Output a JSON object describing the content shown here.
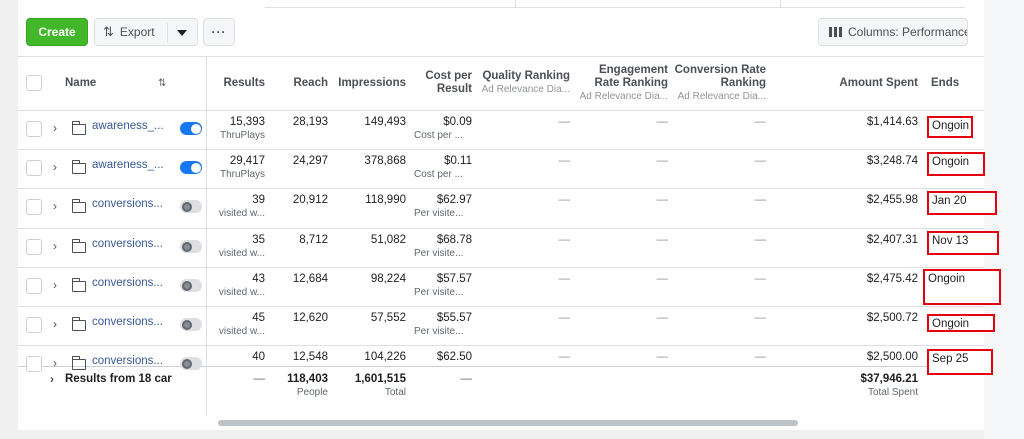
{
  "toolbar": {
    "create_label": "Create",
    "export_label": "Export",
    "more_label": "···",
    "columns_label": "Columns: Performance"
  },
  "headers": {
    "name": "Name",
    "results": "Results",
    "reach": "Reach",
    "impressions": "Impressions",
    "cost_per_result": [
      "Cost per",
      "Result"
    ],
    "quality_ranking": [
      "Quality Ranking",
      "Ad Relevance Dia..."
    ],
    "engagement_ranking": [
      "Engagement",
      "Rate Ranking",
      "Ad Relevance Dia..."
    ],
    "conversion_ranking": [
      "Conversion Rate",
      "Ranking",
      "Ad Relevance Dia..."
    ],
    "amount_spent": "Amount Spent",
    "ends": "Ends"
  },
  "rows": [
    {
      "name": "awareness_...",
      "delivery_on": true,
      "results": "15,393",
      "results_type": "ThruPlays",
      "reach": "28,193",
      "impressions": "149,493",
      "cost": "$0.09",
      "cost_type": "Cost per ...",
      "quality": "—",
      "engagement": "—",
      "conversion": "—",
      "spent": "$1,414.63",
      "ends": "Ongoin"
    },
    {
      "name": "awareness_...",
      "delivery_on": true,
      "results": "29,417",
      "results_type": "ThruPlays",
      "reach": "24,297",
      "impressions": "378,868",
      "cost": "$0.11",
      "cost_type": "Cost per ...",
      "quality": "—",
      "engagement": "—",
      "conversion": "—",
      "spent": "$3,248.74",
      "ends": "Ongoin"
    },
    {
      "name": "conversions...",
      "delivery_on": false,
      "results": "39",
      "results_type": "visited w...",
      "reach": "20,912",
      "impressions": "118,990",
      "cost": "$62.97",
      "cost_type": "Per visite...",
      "quality": "—",
      "engagement": "—",
      "conversion": "—",
      "spent": "$2,455.98",
      "ends": "Jan 20"
    },
    {
      "name": "conversions...",
      "delivery_on": false,
      "results": "35",
      "results_type": "visited w...",
      "reach": "8,712",
      "impressions": "51,082",
      "cost": "$68.78",
      "cost_type": "Per visite...",
      "quality": "—",
      "engagement": "—",
      "conversion": "—",
      "spent": "$2,407.31",
      "ends": "Nov 13"
    },
    {
      "name": "conversions...",
      "delivery_on": false,
      "results": "43",
      "results_type": "visited w...",
      "reach": "12,684",
      "impressions": "98,224",
      "cost": "$57.57",
      "cost_type": "Per visite...",
      "quality": "—",
      "engagement": "—",
      "conversion": "—",
      "spent": "$2,475.42",
      "ends": "Ongoin"
    },
    {
      "name": "conversions...",
      "delivery_on": false,
      "results": "45",
      "results_type": "visited w...",
      "reach": "12,620",
      "impressions": "57,552",
      "cost": "$55.57",
      "cost_type": "Per visite...",
      "quality": "—",
      "engagement": "—",
      "conversion": "—",
      "spent": "$2,500.72",
      "ends": "Ongoin"
    },
    {
      "name": "conversions...",
      "delivery_on": false,
      "results": "40",
      "results_type": "",
      "reach": "12,548",
      "impressions": "104,226",
      "cost": "$62.50",
      "cost_type": "",
      "quality": "—",
      "engagement": "—",
      "conversion": "—",
      "spent": "$2,500.00",
      "ends": "Sep 25"
    }
  ],
  "totals": {
    "label": "Results from 18 car",
    "results": "—",
    "reach": "118,403",
    "reach_sub": "People",
    "impressions": "1,601,515",
    "impressions_sub": "Total",
    "cost": "—",
    "spent": "$37,946.21",
    "spent_sub": "Total Spent"
  },
  "colors": {
    "create_green": "#42b72a",
    "link_blue": "#385898",
    "toggle_blue": "#1877f2",
    "highlight_red": "#e5000f"
  }
}
